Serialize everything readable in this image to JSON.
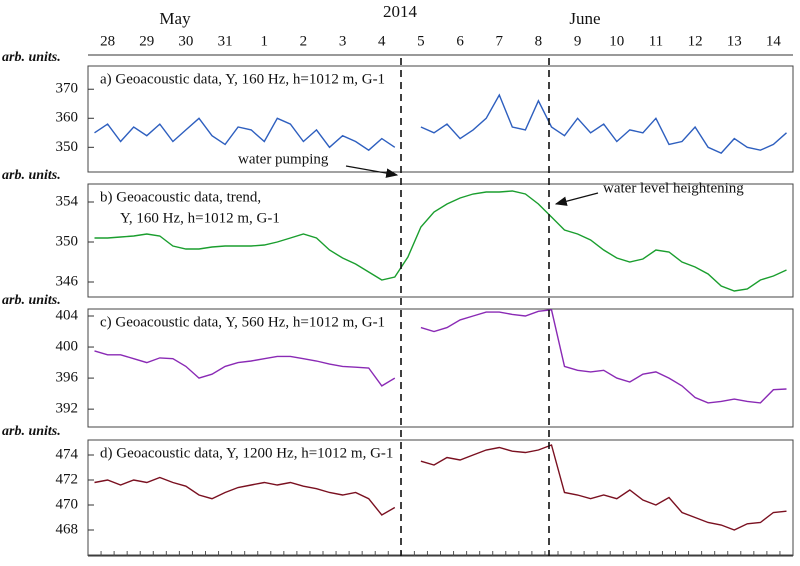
{
  "header": {
    "year": "2014",
    "months": [
      "May",
      "June"
    ]
  },
  "chart_data": [
    {
      "type": "line",
      "title_lines": [
        "a) Geoacoustic data, Y, 160 Hz, h=1012 m,  G-1"
      ],
      "ylabel": "arb. units.",
      "categories": [
        null,
        "28",
        null,
        null,
        "29",
        null,
        null,
        "30",
        null,
        null,
        "31",
        null,
        null,
        "1",
        null,
        null,
        "2",
        null,
        null,
        "3",
        null,
        null,
        "4",
        null,
        null,
        "5",
        null,
        null,
        "6",
        null,
        null,
        "7",
        null,
        null,
        "8",
        null,
        null,
        "9",
        null,
        null,
        "10",
        null,
        null,
        "11",
        null,
        null,
        "12",
        null,
        null,
        "13",
        null,
        null,
        "14",
        null
      ],
      "ylim": [
        341.5,
        378
      ],
      "yticks": [
        350,
        360,
        370
      ],
      "annotations": [
        "water pumping"
      ],
      "series": [
        {
          "color": "#2e5fbf",
          "values": [
            355,
            358,
            352,
            357,
            354,
            358,
            352,
            356,
            360,
            354,
            351,
            357,
            356,
            352,
            360,
            358,
            352,
            356,
            350,
            354,
            352,
            349,
            353,
            350,
            null,
            357,
            355,
            358,
            353,
            356,
            360,
            368,
            357,
            356,
            366,
            357,
            354,
            360,
            355,
            358,
            352,
            356,
            355,
            360,
            351,
            352,
            357,
            350,
            348,
            353,
            350,
            349,
            351,
            355
          ]
        }
      ]
    },
    {
      "type": "line",
      "title_lines": [
        "b) Geoacoustic data, trend,",
        "Y, 160 Hz, h=1012 m,  G-1"
      ],
      "ylabel": "arb. units.",
      "ylim": [
        344.5,
        355.8
      ],
      "yticks": [
        346,
        350,
        354
      ],
      "annotations": [
        "water level heightening"
      ],
      "series": [
        {
          "color": "#1a9e2e",
          "values": [
            350.4,
            350.4,
            350.5,
            350.6,
            350.8,
            350.6,
            349.6,
            349.3,
            349.3,
            349.5,
            349.6,
            349.6,
            349.6,
            349.7,
            350.0,
            350.4,
            350.8,
            350.4,
            349.2,
            348.4,
            347.8,
            347.0,
            346.2,
            346.5,
            348.5,
            351.5,
            353.0,
            353.8,
            354.4,
            354.8,
            355.0,
            355.0,
            355.1,
            354.8,
            353.8,
            352.5,
            351.2,
            350.8,
            350.2,
            349.2,
            348.4,
            348.0,
            348.3,
            349.2,
            349.0,
            348.0,
            347.5,
            346.8,
            345.6,
            345.1,
            345.3,
            346.2,
            346.6,
            347.2
          ]
        }
      ]
    },
    {
      "type": "line",
      "title_lines": [
        "c) Geoacoustic data, Y, 560 Hz, h=1012 m,  G-1"
      ],
      "ylabel": "arb. units.",
      "ylim": [
        389.7,
        404.9
      ],
      "yticks": [
        392,
        396,
        400,
        404
      ],
      "series": [
        {
          "color": "#8a2ab5",
          "values": [
            399.5,
            399,
            399,
            398.5,
            398,
            398.6,
            398.5,
            397.5,
            396,
            396.5,
            397.5,
            398,
            398.2,
            398.5,
            398.8,
            398.8,
            398.5,
            398.2,
            397.8,
            397.5,
            397.4,
            397.3,
            395,
            396,
            null,
            402.5,
            402,
            402.5,
            403.5,
            404,
            404.5,
            404.5,
            404.2,
            404,
            404.6,
            404.8,
            397.5,
            397,
            396.8,
            397,
            396,
            395.5,
            396.5,
            396.8,
            396,
            395,
            393.5,
            392.8,
            393,
            393.3,
            393,
            392.8,
            394.5,
            394.6
          ]
        }
      ]
    },
    {
      "type": "line",
      "title_lines": [
        "d) Geoacoustic data, Y, 1200 Hz, h=1012 m,  G-1"
      ],
      "ylabel": "arb. units.",
      "ylim": [
        466,
        475.2
      ],
      "yticks": [
        468,
        470,
        472,
        474
      ],
      "series": [
        {
          "color": "#7a1020",
          "values": [
            471.8,
            472,
            471.6,
            472,
            471.8,
            472.2,
            471.8,
            471.5,
            470.8,
            470.5,
            471,
            471.4,
            471.6,
            471.8,
            471.6,
            471.8,
            471.5,
            471.3,
            471,
            470.8,
            471,
            470.5,
            469.2,
            469.8,
            null,
            473.5,
            473.2,
            473.8,
            473.6,
            474,
            474.4,
            474.6,
            474.3,
            474.2,
            474.4,
            474.8,
            471,
            470.8,
            470.5,
            470.8,
            470.5,
            471.2,
            470.4,
            470,
            470.6,
            469.4,
            469,
            468.6,
            468.4,
            468.0,
            468.5,
            468.6,
            469.4,
            469.5
          ]
        }
      ]
    }
  ]
}
